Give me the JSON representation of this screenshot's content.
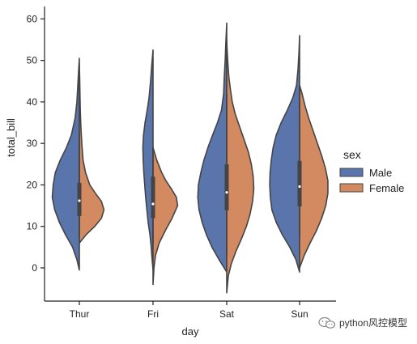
{
  "chart_data": {
    "type": "violin",
    "split": true,
    "xlabel": "day",
    "ylabel": "total_bill",
    "categories": [
      "Thur",
      "Fri",
      "Sat",
      "Sun"
    ],
    "ylim": [
      -8,
      63
    ],
    "yticks": [
      0,
      10,
      20,
      30,
      40,
      50,
      60
    ],
    "legend": {
      "title": "sex",
      "placement": "right",
      "entries": [
        {
          "name": "Male",
          "color": "#5975ab"
        },
        {
          "name": "Female",
          "color": "#d48a61"
        }
      ]
    },
    "series": [
      {
        "name": "Male",
        "color": "#5975ab",
        "violins": [
          {
            "category": "Thur",
            "profile": [
              [
                -0.5,
                0.0
              ],
              [
                2,
                0.08
              ],
              [
                5,
                0.22
              ],
              [
                8,
                0.45
              ],
              [
                11,
                0.65
              ],
              [
                14,
                0.8
              ],
              [
                17,
                0.88
              ],
              [
                20,
                0.85
              ],
              [
                23,
                0.78
              ],
              [
                26,
                0.62
              ],
              [
                29,
                0.42
              ],
              [
                32,
                0.26
              ],
              [
                36,
                0.14
              ],
              [
                40,
                0.08
              ],
              [
                44,
                0.05
              ],
              [
                48,
                0.02
              ],
              [
                50.5,
                0.0
              ]
            ]
          },
          {
            "category": "Fri",
            "profile": [
              [
                -0.5,
                0.0
              ],
              [
                2,
                0.03
              ],
              [
                5,
                0.06
              ],
              [
                8,
                0.1
              ],
              [
                11,
                0.16
              ],
              [
                14,
                0.2
              ],
              [
                17,
                0.24
              ],
              [
                20,
                0.27
              ],
              [
                23,
                0.3
              ],
              [
                26,
                0.32
              ],
              [
                29,
                0.33
              ],
              [
                32,
                0.31
              ],
              [
                35,
                0.26
              ],
              [
                38,
                0.19
              ],
              [
                41,
                0.13
              ],
              [
                45,
                0.08
              ],
              [
                49,
                0.04
              ],
              [
                52.5,
                0.0
              ]
            ]
          },
          {
            "category": "Sat",
            "profile": [
              [
                -1,
                0.0
              ],
              [
                2,
                0.25
              ],
              [
                5,
                0.48
              ],
              [
                8,
                0.66
              ],
              [
                11,
                0.8
              ],
              [
                14,
                0.9
              ],
              [
                17,
                0.94
              ],
              [
                20,
                0.92
              ],
              [
                23,
                0.84
              ],
              [
                26,
                0.74
              ],
              [
                29,
                0.61
              ],
              [
                32,
                0.46
              ],
              [
                35,
                0.3
              ],
              [
                38,
                0.17
              ],
              [
                42,
                0.1
              ],
              [
                46,
                0.08
              ],
              [
                50,
                0.05
              ],
              [
                54,
                0.03
              ],
              [
                59,
                0.0
              ]
            ]
          },
          {
            "category": "Sun",
            "profile": [
              [
                -1,
                0.0
              ],
              [
                2,
                0.12
              ],
              [
                5,
                0.32
              ],
              [
                8,
                0.56
              ],
              [
                11,
                0.76
              ],
              [
                14,
                0.9
              ],
              [
                17,
                0.95
              ],
              [
                20,
                0.97
              ],
              [
                23,
                0.96
              ],
              [
                26,
                0.92
              ],
              [
                29,
                0.86
              ],
              [
                32,
                0.76
              ],
              [
                35,
                0.6
              ],
              [
                38,
                0.4
              ],
              [
                41,
                0.22
              ],
              [
                44,
                0.1
              ],
              [
                48,
                0.05
              ],
              [
                52,
                0.02
              ],
              [
                56,
                0.0
              ]
            ]
          }
        ]
      },
      {
        "name": "Female",
        "color": "#d48a61",
        "violins": [
          {
            "category": "Thur",
            "profile": [
              [
                6,
                0.0
              ],
              [
                8,
                0.22
              ],
              [
                10,
                0.5
              ],
              [
                12,
                0.72
              ],
              [
                14,
                0.8
              ],
              [
                16,
                0.72
              ],
              [
                18,
                0.52
              ],
              [
                20,
                0.34
              ],
              [
                23,
                0.2
              ],
              [
                26,
                0.12
              ],
              [
                30,
                0.08
              ],
              [
                34,
                0.05
              ],
              [
                38,
                0.03
              ],
              [
                42,
                0.02
              ],
              [
                46,
                0.01
              ],
              [
                49,
                0.0
              ]
            ]
          },
          {
            "category": "Fri",
            "profile": [
              [
                -4,
                0.0
              ],
              [
                0,
                0.03
              ],
              [
                3,
                0.08
              ],
              [
                6,
                0.2
              ],
              [
                9,
                0.4
              ],
              [
                12,
                0.62
              ],
              [
                15,
                0.8
              ],
              [
                17,
                0.76
              ],
              [
                19,
                0.6
              ],
              [
                21,
                0.42
              ],
              [
                23,
                0.28
              ],
              [
                26,
                0.12
              ],
              [
                29,
                0.0
              ]
            ]
          },
          {
            "category": "Sat",
            "profile": [
              [
                -6,
                0.0
              ],
              [
                -2,
                0.05
              ],
              [
                1,
                0.15
              ],
              [
                4,
                0.3
              ],
              [
                7,
                0.48
              ],
              [
                10,
                0.64
              ],
              [
                13,
                0.76
              ],
              [
                16,
                0.84
              ],
              [
                19,
                0.88
              ],
              [
                22,
                0.86
              ],
              [
                25,
                0.8
              ],
              [
                28,
                0.7
              ],
              [
                31,
                0.56
              ],
              [
                34,
                0.42
              ],
              [
                37,
                0.28
              ],
              [
                40,
                0.18
              ],
              [
                43,
                0.12
              ],
              [
                46,
                0.07
              ],
              [
                49,
                0.04
              ],
              [
                53,
                0.01
              ],
              [
                55,
                0.0
              ]
            ]
          },
          {
            "category": "Sun",
            "profile": [
              [
                0,
                0.0
              ],
              [
                3,
                0.15
              ],
              [
                6,
                0.34
              ],
              [
                9,
                0.55
              ],
              [
                12,
                0.72
              ],
              [
                15,
                0.85
              ],
              [
                18,
                0.92
              ],
              [
                21,
                0.92
              ],
              [
                24,
                0.84
              ],
              [
                27,
                0.72
              ],
              [
                30,
                0.58
              ],
              [
                33,
                0.44
              ],
              [
                36,
                0.3
              ],
              [
                39,
                0.18
              ],
              [
                42,
                0.08
              ],
              [
                44,
                0.0
              ]
            ]
          }
        ]
      }
    ],
    "inner_box": [
      {
        "category": "Thur",
        "median": 16.2,
        "q1": 12.5,
        "q3": 20.5,
        "whisker_low": 7.5,
        "whisker_high": 32.5
      },
      {
        "category": "Fri",
        "median": 15.4,
        "q1": 12.0,
        "q3": 22.0,
        "whisker_low": 5.8,
        "whisker_high": 29.0
      },
      {
        "category": "Sat",
        "median": 18.2,
        "q1": 13.9,
        "q3": 25.0,
        "whisker_low": 3.1,
        "whisker_high": 42.0
      },
      {
        "category": "Sun",
        "median": 19.6,
        "q1": 14.8,
        "q3": 25.8,
        "whisker_low": 7.3,
        "whisker_high": 44.0
      }
    ]
  },
  "watermark": {
    "text": "python风控模型",
    "icon": "wechat-icon"
  }
}
